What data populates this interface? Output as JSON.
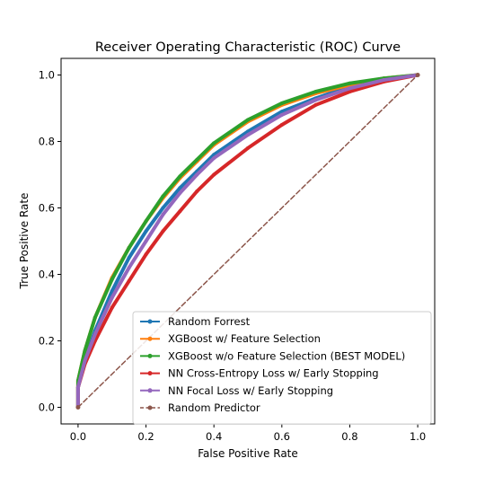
{
  "chart_data": {
    "type": "line",
    "title": "Receiver Operating Characteristic (ROC) Curve",
    "xlabel": "False Positive Rate",
    "ylabel": "True Positive Rate",
    "xlim": [
      -0.05,
      1.05
    ],
    "ylim": [
      -0.05,
      1.05
    ],
    "xticks": [
      0.0,
      0.2,
      0.4,
      0.6,
      0.8,
      1.0
    ],
    "yticks": [
      0.0,
      0.2,
      0.4,
      0.6,
      0.8,
      1.0
    ],
    "xtick_labels": [
      "0.0",
      "0.2",
      "0.4",
      "0.6",
      "0.8",
      "1.0"
    ],
    "ytick_labels": [
      "0.0",
      "0.2",
      "0.4",
      "0.6",
      "0.8",
      "1.0"
    ],
    "grid": false,
    "legend_position": "lower-right",
    "series": [
      {
        "name": "Random Forrest",
        "color": "#1f77b4",
        "style": "solid",
        "x": [
          0,
          0,
          0.02,
          0.05,
          0.1,
          0.15,
          0.2,
          0.25,
          0.3,
          0.35,
          0.4,
          0.5,
          0.6,
          0.7,
          0.8,
          0.9,
          1.0
        ],
        "y": [
          0,
          0.06,
          0.14,
          0.23,
          0.35,
          0.45,
          0.53,
          0.6,
          0.66,
          0.71,
          0.76,
          0.83,
          0.89,
          0.93,
          0.965,
          0.985,
          1.0
        ]
      },
      {
        "name": "XGBoost w/ Feature Selection",
        "color": "#ff7f0e",
        "style": "solid",
        "x": [
          0,
          0,
          0.02,
          0.05,
          0.1,
          0.15,
          0.2,
          0.25,
          0.3,
          0.35,
          0.4,
          0.5,
          0.6,
          0.7,
          0.8,
          0.9,
          1.0
        ],
        "y": [
          0,
          0.08,
          0.17,
          0.27,
          0.39,
          0.48,
          0.56,
          0.63,
          0.69,
          0.74,
          0.79,
          0.86,
          0.91,
          0.945,
          0.97,
          0.99,
          1.0
        ]
      },
      {
        "name": "XGBoost w/o Feature Selection (BEST MODEL)",
        "color": "#2ca02c",
        "style": "solid",
        "x": [
          0,
          0,
          0.02,
          0.05,
          0.1,
          0.15,
          0.2,
          0.25,
          0.3,
          0.35,
          0.4,
          0.5,
          0.6,
          0.7,
          0.8,
          0.9,
          1.0
        ],
        "y": [
          0,
          0.08,
          0.17,
          0.27,
          0.385,
          0.48,
          0.56,
          0.635,
          0.695,
          0.745,
          0.795,
          0.865,
          0.915,
          0.95,
          0.975,
          0.99,
          1.0
        ]
      },
      {
        "name": "NN Cross-Entropy Loss w/ Early Stopping",
        "color": "#d62728",
        "style": "solid",
        "x": [
          0,
          0,
          0.02,
          0.05,
          0.1,
          0.15,
          0.2,
          0.25,
          0.3,
          0.35,
          0.4,
          0.5,
          0.6,
          0.7,
          0.8,
          0.9,
          1.0
        ],
        "y": [
          0,
          0.06,
          0.13,
          0.2,
          0.3,
          0.38,
          0.46,
          0.53,
          0.59,
          0.65,
          0.7,
          0.78,
          0.85,
          0.91,
          0.95,
          0.98,
          1.0
        ]
      },
      {
        "name": "NN Focal Loss w/ Early Stopping",
        "color": "#9467bd",
        "style": "solid",
        "x": [
          0,
          0,
          0.02,
          0.05,
          0.1,
          0.15,
          0.2,
          0.25,
          0.3,
          0.35,
          0.4,
          0.5,
          0.6,
          0.7,
          0.8,
          0.9,
          1.0
        ],
        "y": [
          0,
          0.06,
          0.14,
          0.22,
          0.33,
          0.42,
          0.5,
          0.58,
          0.645,
          0.7,
          0.75,
          0.82,
          0.88,
          0.925,
          0.96,
          0.985,
          1.0
        ]
      },
      {
        "name": "Random Predictor",
        "color": "#8c564b",
        "style": "dashed",
        "x": [
          0,
          1
        ],
        "y": [
          0,
          1
        ]
      }
    ]
  }
}
